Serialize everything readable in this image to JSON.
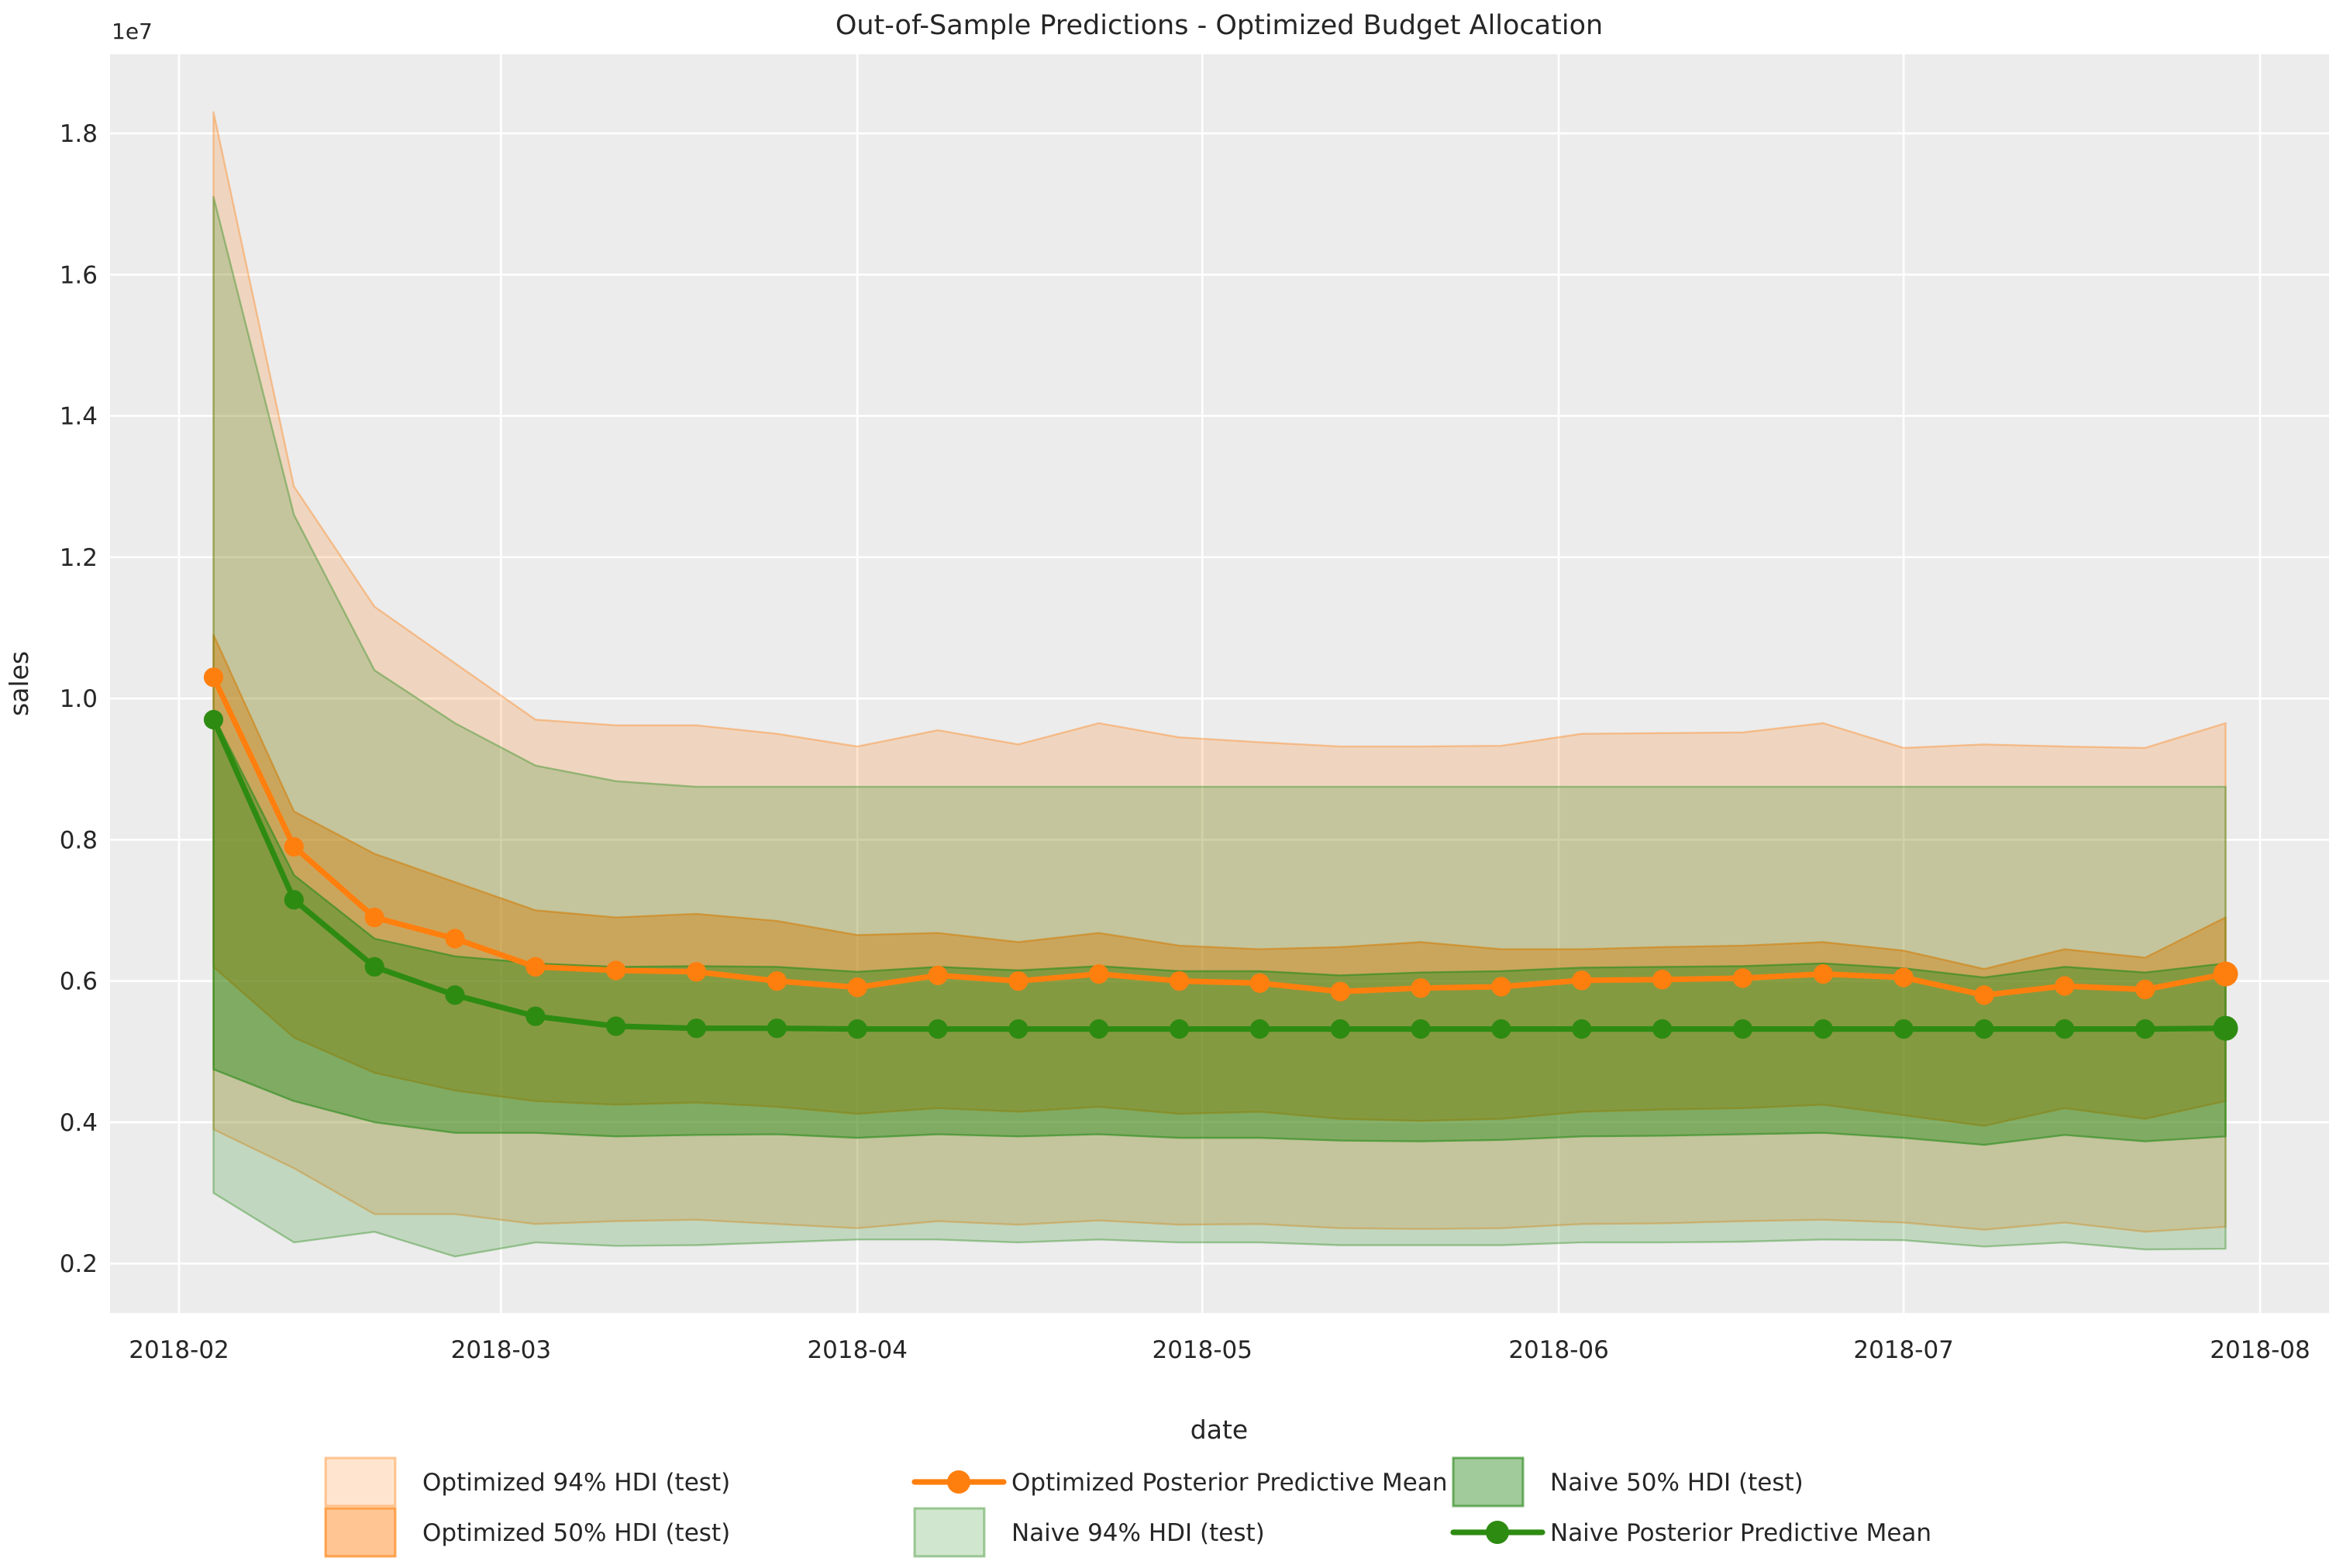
{
  "figure": {
    "title": "Out-of-Sample Predictions - Optimized Budget Allocation",
    "background": "#ffffff",
    "plot_background": "#ececec",
    "gridline_color": "#ffffff"
  },
  "axes": {
    "x_label": "date",
    "y_label": "sales",
    "y_offset_label": "1e7",
    "x_ticks": [
      {
        "label": "2018-02",
        "day": 6
      },
      {
        "label": "2018-03",
        "day": 34
      },
      {
        "label": "2018-04",
        "day": 65
      },
      {
        "label": "2018-05",
        "day": 95
      },
      {
        "label": "2018-06",
        "day": 126
      },
      {
        "label": "2018-07",
        "day": 156
      },
      {
        "label": "2018-08",
        "day": 187
      }
    ],
    "y_ticks": [
      {
        "label": "0.2",
        "value": 0.2
      },
      {
        "label": "0.4",
        "value": 0.4
      },
      {
        "label": "0.6",
        "value": 0.6
      },
      {
        "label": "0.8",
        "value": 0.8
      },
      {
        "label": "1.0",
        "value": 1.0
      },
      {
        "label": "1.2",
        "value": 1.2
      },
      {
        "label": "1.4",
        "value": 1.4
      },
      {
        "label": "1.6",
        "value": 1.6
      },
      {
        "label": "1.8",
        "value": 1.8
      }
    ],
    "xlim_days": [
      0,
      193
    ],
    "ylim": [
      0.13,
      1.912
    ]
  },
  "chart_data": {
    "type": "line",
    "units": "sales in 1e7",
    "x": [
      "2018-02-04",
      "2018-02-11",
      "2018-02-18",
      "2018-02-25",
      "2018-03-04",
      "2018-03-11",
      "2018-03-18",
      "2018-03-25",
      "2018-04-01",
      "2018-04-08",
      "2018-04-15",
      "2018-04-22",
      "2018-04-29",
      "2018-05-06",
      "2018-05-13",
      "2018-05-20",
      "2018-05-27",
      "2018-06-03",
      "2018-06-10",
      "2018-06-17",
      "2018-06-24",
      "2018-07-01",
      "2018-07-08",
      "2018-07-15",
      "2018-07-22",
      "2018-07-29"
    ],
    "x_day_offsets": [
      9,
      16,
      23,
      30,
      37,
      44,
      51,
      58,
      65,
      72,
      79,
      86,
      93,
      100,
      107,
      114,
      121,
      128,
      135,
      142,
      149,
      156,
      163,
      170,
      177,
      184
    ],
    "series": [
      {
        "name": "Optimized Posterior Predictive Mean",
        "color": "#ff7f0e",
        "values": [
          1.03,
          0.79,
          0.69,
          0.66,
          0.62,
          0.615,
          0.613,
          0.6,
          0.591,
          0.608,
          0.6,
          0.61,
          0.6,
          0.597,
          0.585,
          0.59,
          0.592,
          0.601,
          0.602,
          0.604,
          0.61,
          0.605,
          0.58,
          0.593,
          0.588,
          0.61
        ]
      },
      {
        "name": "Naive Posterior Predictive Mean",
        "color": "#2e8b12",
        "values": [
          0.97,
          0.715,
          0.62,
          0.58,
          0.55,
          0.536,
          0.533,
          0.533,
          0.532,
          0.532,
          0.532,
          0.532,
          0.532,
          0.532,
          0.532,
          0.532,
          0.532,
          0.532,
          0.532,
          0.532,
          0.532,
          0.532,
          0.532,
          0.532,
          0.532,
          0.533
        ]
      }
    ],
    "bands": [
      {
        "name": "Optimized 94% HDI (test)",
        "color": "#ff7f0e",
        "alpha": 0.2,
        "upper": [
          1.83,
          1.3,
          1.13,
          1.05,
          0.97,
          0.962,
          0.962,
          0.95,
          0.932,
          0.955,
          0.935,
          0.965,
          0.945,
          0.938,
          0.932,
          0.932,
          0.933,
          0.95,
          0.951,
          0.952,
          0.965,
          0.93,
          0.935,
          0.932,
          0.93,
          0.965
        ],
        "lower": [
          0.39,
          0.335,
          0.27,
          0.27,
          0.256,
          0.26,
          0.262,
          0.256,
          0.25,
          0.26,
          0.255,
          0.261,
          0.255,
          0.256,
          0.25,
          0.249,
          0.25,
          0.256,
          0.257,
          0.26,
          0.262,
          0.258,
          0.248,
          0.258,
          0.245,
          0.252
        ]
      },
      {
        "name": "Optimized 50% HDI (test)",
        "color": "#ff7f0e",
        "alpha": 0.45,
        "upper": [
          1.09,
          0.84,
          0.78,
          0.74,
          0.7,
          0.69,
          0.695,
          0.685,
          0.665,
          0.668,
          0.655,
          0.668,
          0.65,
          0.645,
          0.648,
          0.655,
          0.645,
          0.645,
          0.648,
          0.65,
          0.655,
          0.643,
          0.617,
          0.645,
          0.633,
          0.69
        ],
        "lower": [
          0.62,
          0.52,
          0.47,
          0.445,
          0.43,
          0.425,
          0.428,
          0.422,
          0.412,
          0.42,
          0.415,
          0.422,
          0.412,
          0.415,
          0.405,
          0.402,
          0.405,
          0.415,
          0.418,
          0.42,
          0.425,
          0.41,
          0.395,
          0.42,
          0.405,
          0.43
        ]
      },
      {
        "name": "Naive 94% HDI (test)",
        "color": "#2e8b1e",
        "alpha": 0.22,
        "upper": [
          1.71,
          1.26,
          1.04,
          0.965,
          0.905,
          0.883,
          0.875,
          0.875,
          0.875,
          0.875,
          0.875,
          0.875,
          0.875,
          0.875,
          0.875,
          0.875,
          0.875,
          0.875,
          0.875,
          0.875,
          0.875,
          0.875,
          0.875,
          0.875,
          0.875,
          0.875
        ],
        "lower": [
          0.3,
          0.23,
          0.245,
          0.21,
          0.23,
          0.225,
          0.226,
          0.23,
          0.234,
          0.234,
          0.23,
          0.234,
          0.23,
          0.23,
          0.226,
          0.226,
          0.226,
          0.23,
          0.23,
          0.231,
          0.234,
          0.233,
          0.224,
          0.23,
          0.22,
          0.221
        ]
      },
      {
        "name": "Naive 50% HDI (test)",
        "color": "#2e8b1e",
        "alpha": 0.45,
        "upper": [
          0.975,
          0.75,
          0.66,
          0.635,
          0.625,
          0.62,
          0.621,
          0.62,
          0.613,
          0.62,
          0.615,
          0.621,
          0.614,
          0.614,
          0.608,
          0.612,
          0.614,
          0.619,
          0.62,
          0.621,
          0.625,
          0.618,
          0.605,
          0.62,
          0.612,
          0.625
        ],
        "lower": [
          0.475,
          0.43,
          0.4,
          0.385,
          0.385,
          0.38,
          0.382,
          0.383,
          0.378,
          0.383,
          0.38,
          0.383,
          0.378,
          0.378,
          0.374,
          0.373,
          0.375,
          0.38,
          0.381,
          0.383,
          0.385,
          0.378,
          0.368,
          0.382,
          0.373,
          0.38
        ]
      }
    ],
    "title": "Out-of-Sample Predictions - Optimized Budget Allocation",
    "xlabel": "date",
    "ylabel": "sales",
    "legend_position": "below-center"
  },
  "legend": {
    "items": [
      {
        "swatch": "patch",
        "color": "#ff7f0e",
        "alpha": 0.2,
        "label": "Optimized 94% HDI (test)",
        "col": 0,
        "row": 0
      },
      {
        "swatch": "patch",
        "color": "#ff7f0e",
        "alpha": 0.45,
        "label": "Optimized 50% HDI (test)",
        "col": 0,
        "row": 1
      },
      {
        "swatch": "line",
        "color": "#ff7f0e",
        "label": "Optimized Posterior Predictive Mean",
        "col": 1,
        "row": 0
      },
      {
        "swatch": "patch",
        "color": "#2e8b1e",
        "alpha": 0.22,
        "label": "Naive 94% HDI (test)",
        "col": 1,
        "row": 1
      },
      {
        "swatch": "patch",
        "color": "#2e8b1e",
        "alpha": 0.45,
        "label": "Naive 50% HDI (test)",
        "col": 2,
        "row": 0
      },
      {
        "swatch": "line",
        "color": "#2e8b12",
        "label": "Naive Posterior Predictive Mean",
        "col": 2,
        "row": 1
      }
    ]
  }
}
